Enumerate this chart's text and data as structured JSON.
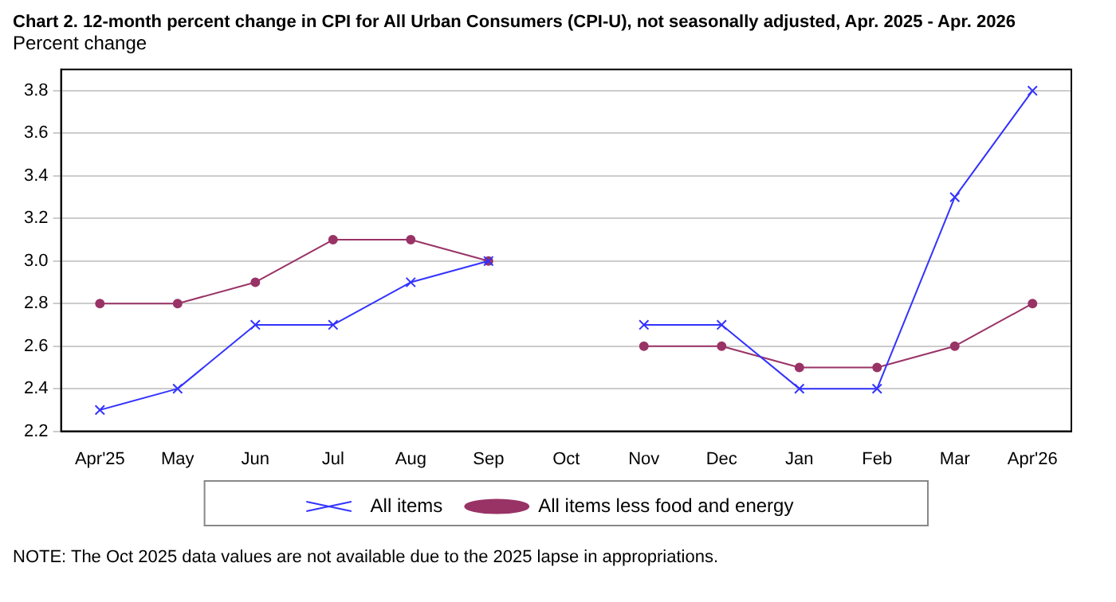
{
  "chart_data": {
    "type": "line",
    "title": "Chart 2. 12-month percent change in CPI for All Urban Consumers (CPI-U), not seasonally adjusted, Apr. 2025 - Apr. 2026",
    "ylabel": "Percent change",
    "categories": [
      "Apr'25",
      "May",
      "Jun",
      "Jul",
      "Aug",
      "Sep",
      "Oct",
      "Nov",
      "Dec",
      "Jan",
      "Feb",
      "Mar",
      "Apr'26"
    ],
    "series": [
      {
        "name": "All items",
        "color": "#3333ff",
        "marker": "cross",
        "values": [
          2.3,
          2.4,
          2.7,
          2.7,
          2.9,
          3.0,
          null,
          2.7,
          2.7,
          2.4,
          2.4,
          3.3,
          3.8
        ]
      },
      {
        "name": "All items less food and energy",
        "color": "#993366",
        "marker": "circle",
        "values": [
          2.8,
          2.8,
          2.9,
          3.1,
          3.1,
          3.0,
          null,
          2.6,
          2.6,
          2.5,
          2.5,
          2.6,
          2.8
        ]
      }
    ],
    "ylim": [
      2.2,
      3.9
    ],
    "yticks": [
      2.2,
      2.4,
      2.6,
      2.8,
      {
        "value": 3.0,
        "label": "3.0"
      },
      3.2,
      3.4,
      3.6,
      3.8
    ],
    "grid": "y",
    "legend": "bottom",
    "line_style": "solid",
    "annotations": [
      "NOTE: The Oct 2025 data values are not available due to the 2025 lapse in appropriations."
    ]
  }
}
